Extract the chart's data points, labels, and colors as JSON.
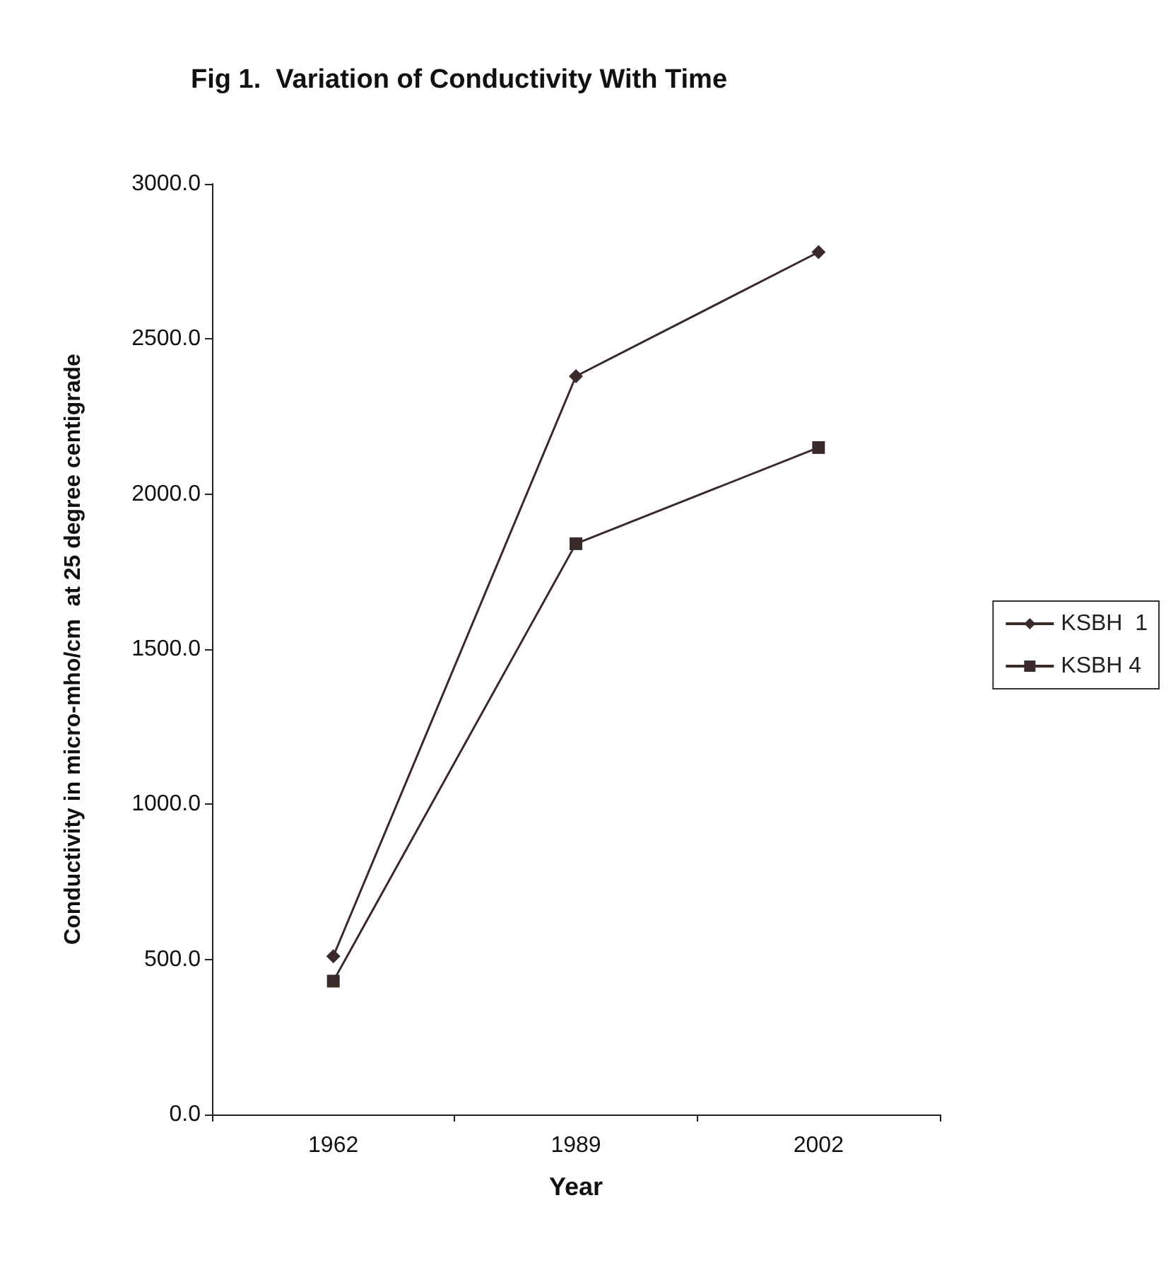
{
  "chart_data": {
    "type": "line",
    "title": "Fig 1.  Variation of Conductivity With Time",
    "xlabel": "Year",
    "ylabel": "Conductivity in micro-mho/cm  at 25 degree centigrade",
    "categories": [
      "1962",
      "1989",
      "2002"
    ],
    "series": [
      {
        "name": "KSBH  1",
        "color": "#3a2a2a",
        "marker": "diamond",
        "values": [
          510,
          2380,
          2780
        ]
      },
      {
        "name": "KSBH 4",
        "color": "#3a2a2a",
        "marker": "square",
        "values": [
          430,
          1840,
          2150
        ]
      }
    ],
    "ylim": [
      0,
      3000
    ],
    "yticks": [
      {
        "value": 0,
        "label": "0.0"
      },
      {
        "value": 500,
        "label": "500.0"
      },
      {
        "value": 1000,
        "label": "1000.0"
      },
      {
        "value": 1500,
        "label": "1500.0"
      },
      {
        "value": 2000,
        "label": "2000.0"
      },
      {
        "value": 2500,
        "label": "2500.0"
      },
      {
        "value": 3000,
        "label": "3000.0"
      }
    ],
    "grid": false,
    "legend": "right",
    "line_style": "solid"
  }
}
